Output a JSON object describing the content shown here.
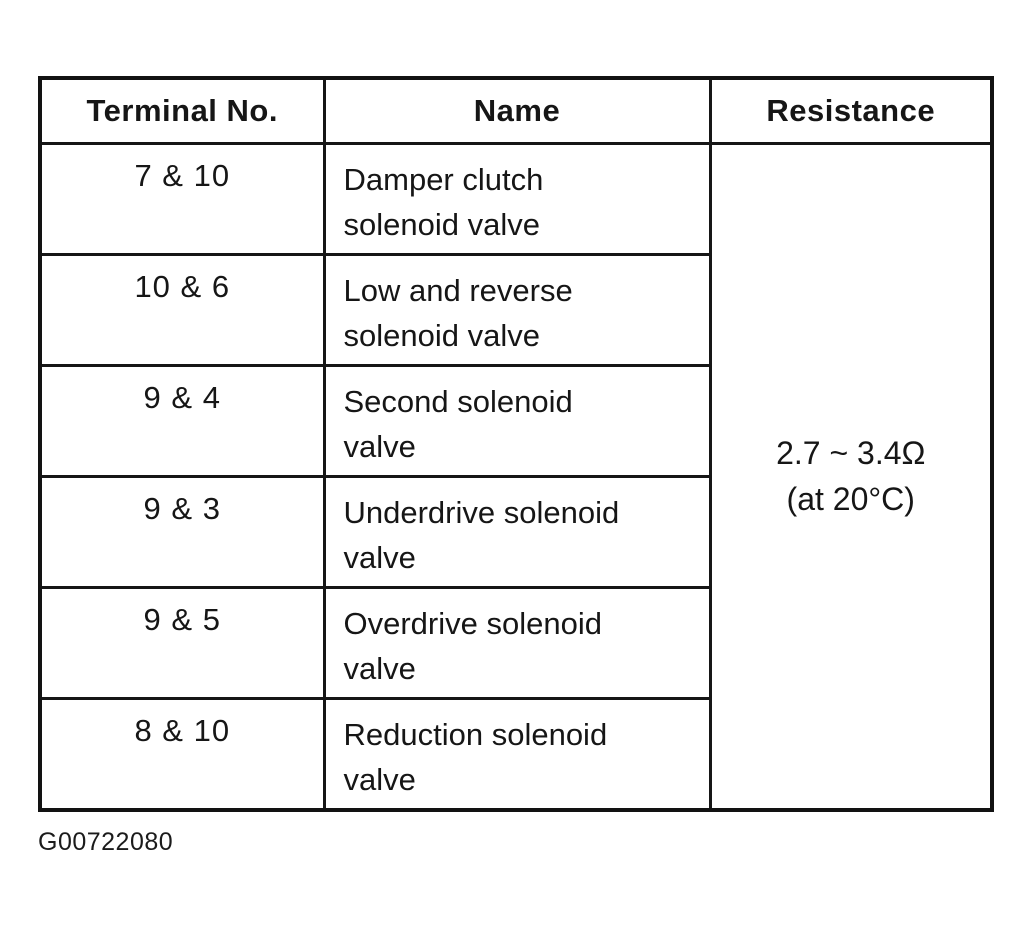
{
  "page": {
    "background": "#ffffff",
    "ink_color": "#161616"
  },
  "table": {
    "headers": {
      "terminal": "Terminal No.",
      "name": "Name",
      "resistance": "Resistance"
    },
    "rows": [
      {
        "terminal": "7 & 10",
        "name_lines": [
          "Damper clutch",
          "solenoid valve"
        ]
      },
      {
        "terminal": "10 & 6",
        "name_lines": [
          "Low and reverse",
          "solenoid valve"
        ]
      },
      {
        "terminal": "9 & 4",
        "name_lines": [
          "Second solenoid",
          "valve"
        ]
      },
      {
        "terminal": "9 & 3",
        "name_lines": [
          "Underdrive solenoid",
          "valve"
        ]
      },
      {
        "terminal": "9 & 5",
        "name_lines": [
          "Overdrive solenoid",
          "valve"
        ]
      },
      {
        "terminal": "8 & 10",
        "name_lines": [
          "Reduction solenoid",
          "valve"
        ]
      }
    ],
    "resistance_value_lines": [
      "2.7 ~ 3.4Ω",
      "(at 20°C)"
    ]
  },
  "caption": "G00722080"
}
